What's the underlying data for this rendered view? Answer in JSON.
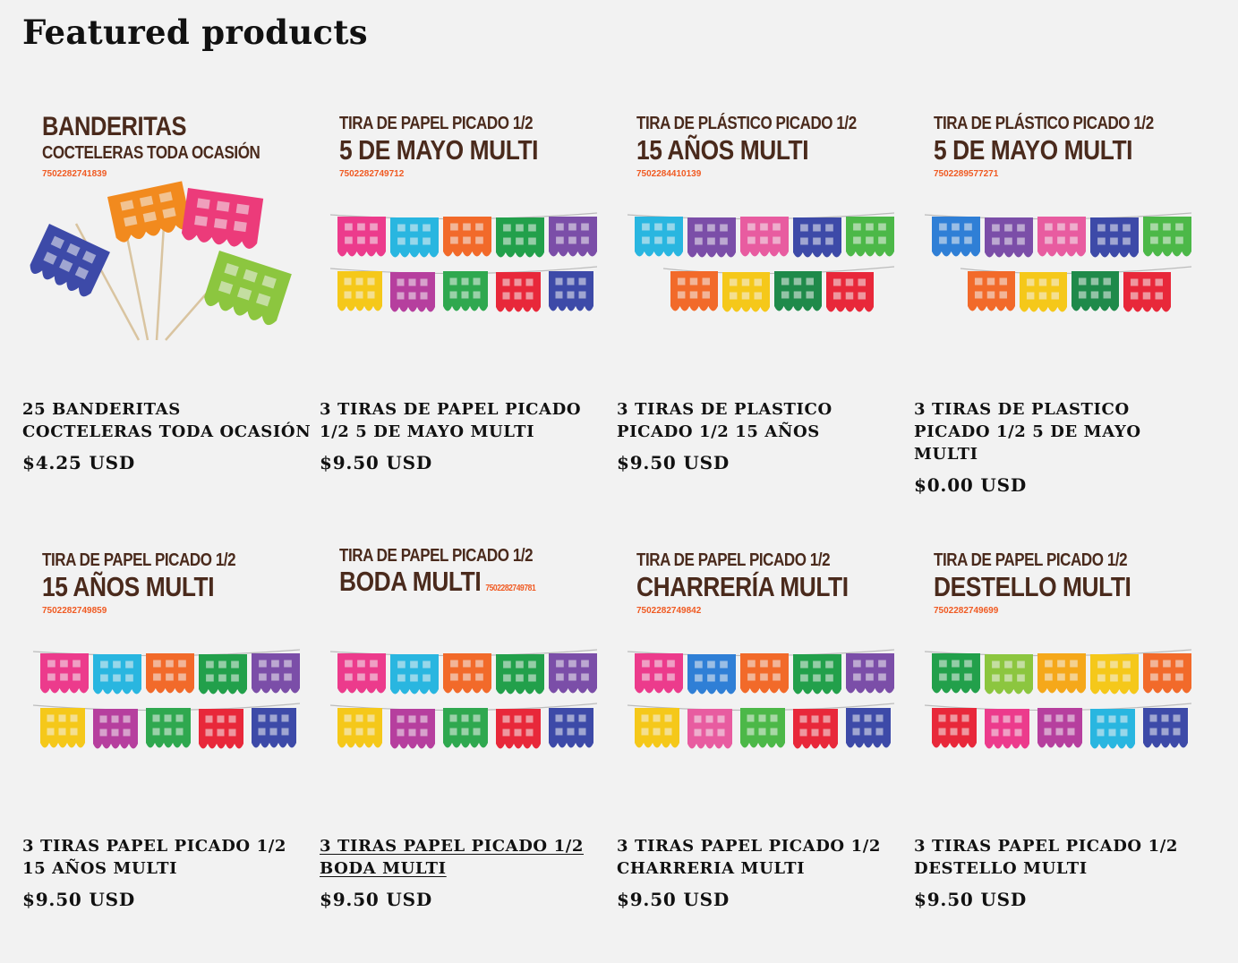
{
  "heading": "Featured products",
  "products": [
    {
      "title": "25 Banderitas Cocteleras Toda Ocasión",
      "price": "$4.25 USD",
      "image": {
        "line1": "BANDERITAS",
        "line2": "COCTELERAS TODA OCASIÓN",
        "code": "7502282741839",
        "style": "sticks",
        "colors": [
          "#3d4aa8",
          "#f28a1e",
          "#ec3b7a",
          "#8cc63f"
        ]
      }
    },
    {
      "title": "3 Tiras de Papel Picado 1/2 5 de Mayo Multi",
      "price": "$9.50 USD",
      "image": {
        "line1": "TIRA DE PAPEL PICADO 1/2",
        "line2": "5 DE MAYO MULTI",
        "code": "7502282749712",
        "style": "garland",
        "colors": [
          "#ec3b8c",
          "#29b6e0",
          "#f26a2a",
          "#22a04b",
          "#7b4ea8",
          "#f5c81a",
          "#b63f9e",
          "#2fa84f",
          "#e8283a",
          "#3d4aa8"
        ]
      }
    },
    {
      "title": "3 Tiras de Plastico Picado 1/2 15 Años",
      "price": "$9.50 USD",
      "image": {
        "line1": "TIRA DE PLÁSTICO PICADO 1/2",
        "line2": "15 AÑOS MULTI",
        "code": "7502284410139",
        "style": "garland",
        "colors": [
          "#29b6e0",
          "#7b4ea8",
          "#e85ca0",
          "#3d4aa8",
          "#4cb848",
          "#f26a2a",
          "#f5c81a",
          "#1f8a4a",
          "#e8283a"
        ]
      }
    },
    {
      "title": "3 Tiras de Plastico Picado 1/2 5 de Mayo Multi",
      "price": "$0.00 USD",
      "image": {
        "line1": "TIRA DE PLÁSTICO PICADO 1/2",
        "line2": "5 DE MAYO MULTI",
        "code": "7502289577271",
        "style": "garland",
        "colors": [
          "#2f7fd6",
          "#7b4ea8",
          "#e85ca0",
          "#3d4aa8",
          "#4cb848",
          "#f26a2a",
          "#f5c81a",
          "#1f8a4a",
          "#e8283a"
        ]
      }
    },
    {
      "title": "3 Tiras Papel Picado 1/2 15 Años Multi",
      "price": "$9.50 USD",
      "image": {
        "line1": "TIRA DE PAPEL PICADO 1/2",
        "line2": "15 AÑOS MULTI",
        "code": "7502282749859",
        "style": "garland",
        "colors": [
          "#ec3b8c",
          "#29b6e0",
          "#f26a2a",
          "#22a04b",
          "#7b4ea8",
          "#f5c81a",
          "#b63f9e",
          "#2fa84f",
          "#e8283a",
          "#3d4aa8"
        ]
      }
    },
    {
      "title": "3 Tiras Papel Picado 1/2 Boda Multi",
      "price": "$9.50 USD",
      "hover": true,
      "image": {
        "line1": "TIRA DE PAPEL PICADO 1/2",
        "line2": "BODA MULTI",
        "code": "7502282749781",
        "style": "garland",
        "inline_code": true,
        "colors": [
          "#ec3b8c",
          "#29b6e0",
          "#f26a2a",
          "#22a04b",
          "#7b4ea8",
          "#f5c81a",
          "#b63f9e",
          "#2fa84f",
          "#e8283a",
          "#3d4aa8"
        ]
      }
    },
    {
      "title": "3 Tiras Papel Picado 1/2 Charreria Multi",
      "price": "$9.50 USD",
      "image": {
        "line1": "TIRA DE PAPEL PICADO 1/2",
        "line2": "CHARRERÍA MULTI",
        "code": "7502282749842",
        "style": "garland",
        "colors": [
          "#ec3b8c",
          "#2f7fd6",
          "#f26a2a",
          "#22a04b",
          "#7b4ea8",
          "#f5c81a",
          "#e85ca0",
          "#4cb848",
          "#e8283a",
          "#3d4aa8"
        ]
      }
    },
    {
      "title": "3 Tiras Papel Picado 1/2 Destello Multi",
      "price": "$9.50 USD",
      "image": {
        "line1": "TIRA DE PAPEL PICADO 1/2",
        "line2": "DESTELLO MULTI",
        "code": "7502282749699",
        "style": "garland",
        "colors": [
          "#22a04b",
          "#8cc63f",
          "#f5a81a",
          "#f5c81a",
          "#f26a2a",
          "#e8283a",
          "#ec3b8c",
          "#b63f9e",
          "#29b6e0",
          "#3d4aa8"
        ]
      }
    }
  ]
}
